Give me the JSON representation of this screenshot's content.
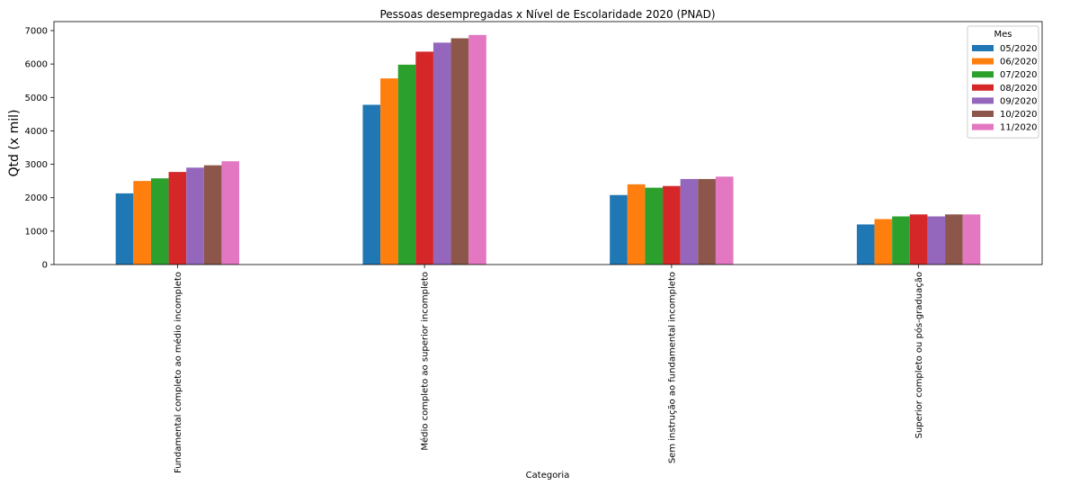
{
  "chart_data": {
    "type": "bar",
    "title": "Pessoas desempregadas x Nível de Escolaridade 2020 (PNAD)",
    "xlabel": "Categoria",
    "ylabel": "Qtd (x mil)",
    "ylim": [
      0,
      7000
    ],
    "yticks": [
      0,
      1000,
      2000,
      3000,
      4000,
      5000,
      6000,
      7000
    ],
    "legend_title": "Mes",
    "legend_position": "top-right",
    "grid": false,
    "categories": [
      "Fundamental completo ao médio incompleto",
      "Médio completo ao superior incompleto",
      "Sem instrução ao fundamental incompleto",
      "Superior completo ou pós-graduação"
    ],
    "series": [
      {
        "name": "05/2020",
        "color": "#1f77b4",
        "values": [
          2130,
          4780,
          2080,
          1200
        ]
      },
      {
        "name": "06/2020",
        "color": "#ff7f0e",
        "values": [
          2500,
          5570,
          2400,
          1360
        ]
      },
      {
        "name": "07/2020",
        "color": "#2ca02c",
        "values": [
          2580,
          5980,
          2300,
          1440
        ]
      },
      {
        "name": "08/2020",
        "color": "#d62728",
        "values": [
          2770,
          6370,
          2350,
          1500
        ]
      },
      {
        "name": "09/2020",
        "color": "#9467bd",
        "values": [
          2900,
          6640,
          2560,
          1440
        ]
      },
      {
        "name": "10/2020",
        "color": "#8c564b",
        "values": [
          2970,
          6770,
          2560,
          1500
        ]
      },
      {
        "name": "11/2020",
        "color": "#e377c2",
        "values": [
          3090,
          6870,
          2630,
          1500
        ]
      }
    ]
  }
}
